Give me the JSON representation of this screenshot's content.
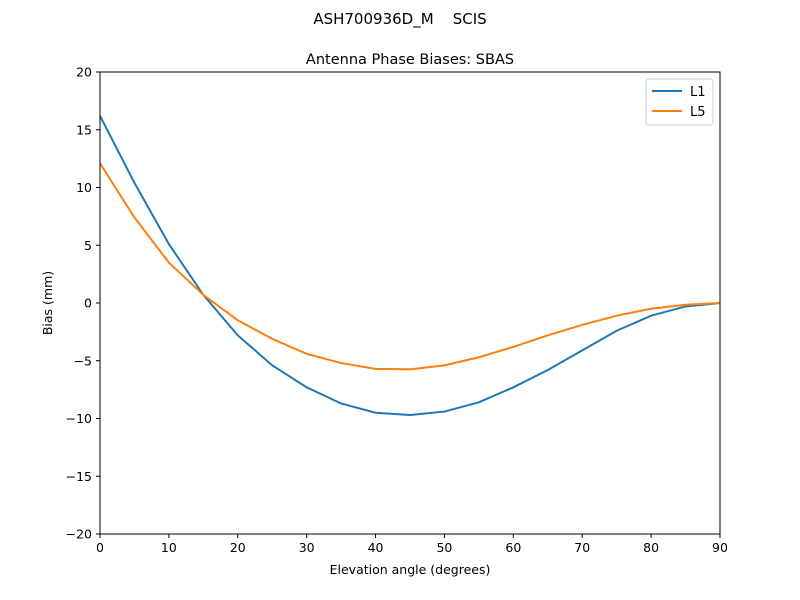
{
  "chart_data": {
    "type": "line",
    "suptitle": "ASH700936D_M    SCIS",
    "title": "Antenna Phase Biases: SBAS",
    "xlabel": "Elevation angle (degrees)",
    "ylabel": "Bias (mm)",
    "xlim": [
      0,
      90
    ],
    "ylim": [
      -20,
      20
    ],
    "xticks": [
      0,
      10,
      20,
      30,
      40,
      50,
      60,
      70,
      80,
      90
    ],
    "yticks": [
      -20,
      -15,
      -10,
      -5,
      0,
      5,
      10,
      15,
      20
    ],
    "grid": false,
    "legend_placement": "top-right",
    "x": [
      0,
      5,
      10,
      15,
      20,
      25,
      30,
      35,
      40,
      45,
      50,
      55,
      60,
      65,
      70,
      75,
      80,
      85,
      90
    ],
    "series": [
      {
        "name": "L1",
        "color": "#1f77b4",
        "values": [
          16.2,
          10.4,
          5.1,
          0.7,
          -2.8,
          -5.4,
          -7.3,
          -8.7,
          -9.5,
          -9.7,
          -9.4,
          -8.6,
          -7.3,
          -5.8,
          -4.1,
          -2.4,
          -1.1,
          -0.3,
          0
        ]
      },
      {
        "name": "L5",
        "color": "#ff7f0e",
        "values": [
          12.1,
          7.4,
          3.5,
          0.7,
          -1.5,
          -3.1,
          -4.4,
          -5.2,
          -5.7,
          -5.75,
          -5.4,
          -4.7,
          -3.8,
          -2.8,
          -1.9,
          -1.1,
          -0.5,
          -0.15,
          0
        ]
      }
    ]
  }
}
